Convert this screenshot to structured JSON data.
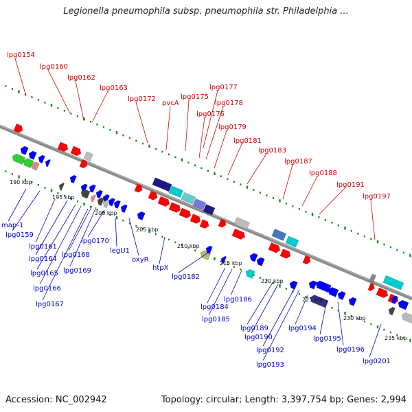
{
  "title": "Legionella pneumophila subsp. pneumophila str. Philadelphia ...",
  "footer": {
    "accession": "Accession: NC_002942",
    "topology": "Topology: circular; Length: 3,397,754 bp; Genes: 2,994"
  },
  "colors": {
    "backbone": "#888888",
    "forward_gene": "#ff0000",
    "reverse_gene": "#0000ff",
    "tick_dot": "#1a8a1a",
    "label_forward": "#cc0000",
    "label_reverse": "#0000cc"
  },
  "ticks": [
    "190 kbp",
    "195 kbp",
    "200 kbp",
    "205 kbp",
    "210 kbp",
    "215 kbp",
    "220 kbp",
    "225 kbp",
    "230 kbp",
    "235 kbp"
  ],
  "forward_genes": [
    "lpg0154",
    "lpg0160",
    "lpg0162",
    "lpg0163",
    "lpg0172",
    "pvcA",
    "lpg0175",
    "lpg0176",
    "lpg0177",
    "lpg0178",
    "lpg0179",
    "lpg0181",
    "lpg0183",
    "lpg0187",
    "lpg0188",
    "lpg0191",
    "lpg0197"
  ],
  "reverse_genes": [
    "map-1",
    "lpg0159",
    "lpg0161",
    "lpg0164",
    "lpg0165",
    "lpg0166",
    "lpg0167",
    "lpg0168",
    "lpg0169",
    "lpg0170",
    "legU1",
    "oxyR",
    "htpX",
    "lpg0182",
    "lpg0184",
    "lpg0185",
    "lpg0186",
    "lpg0189",
    "lpg0190",
    "lpg0192",
    "lpg0193",
    "lpg0194",
    "lpg0195",
    "lpg0196",
    "lpg0201"
  ]
}
